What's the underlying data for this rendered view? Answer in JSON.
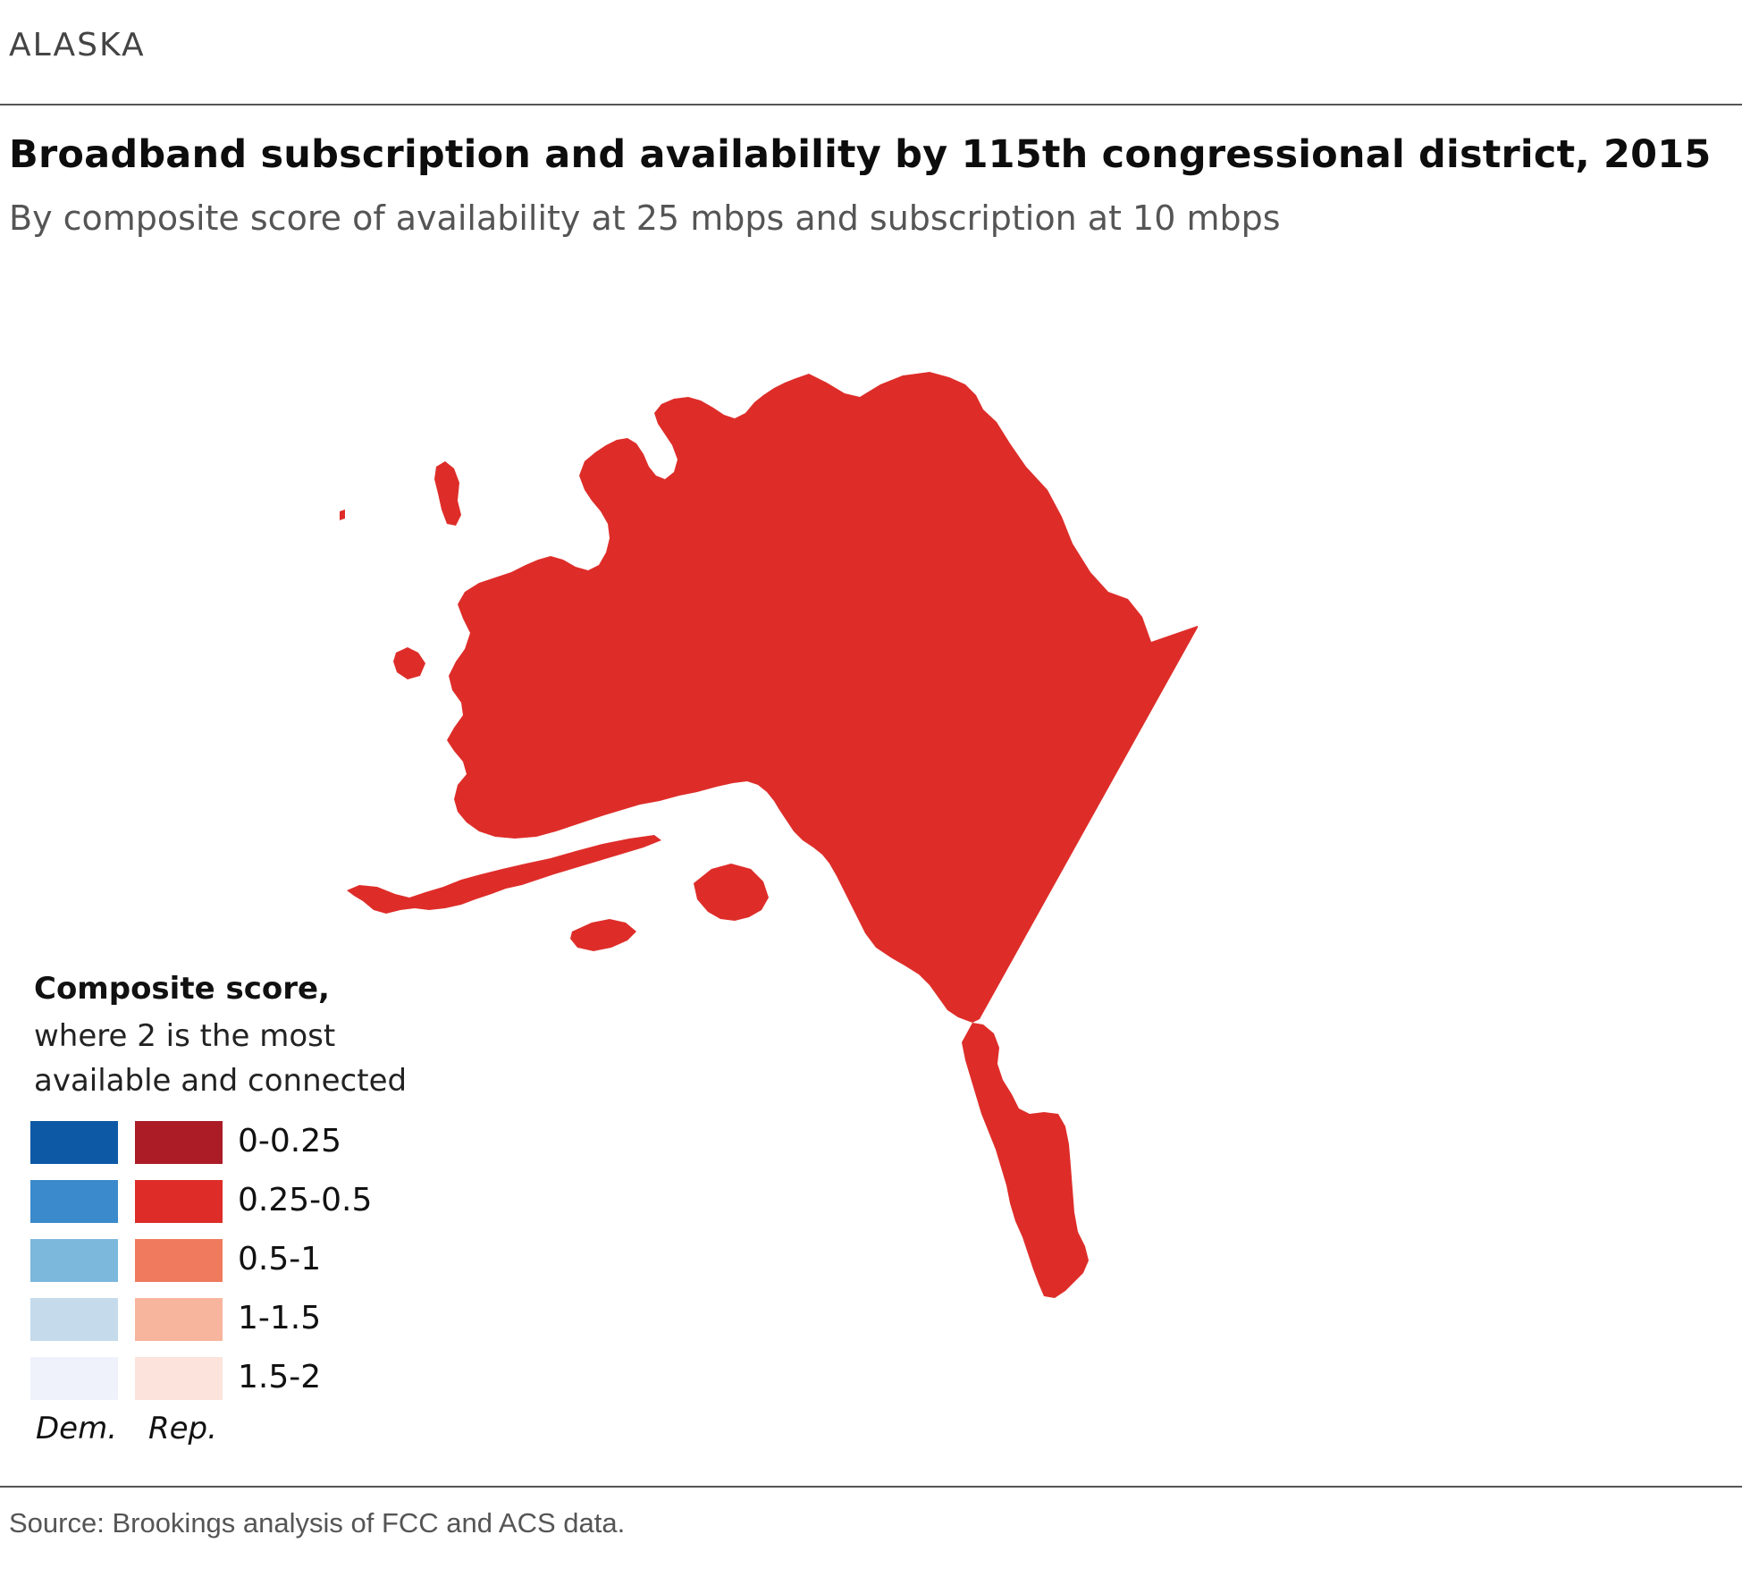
{
  "header": {
    "state": "ALASKA",
    "title": "Broadband subscription and availability by 115th congressional district, 2015",
    "subtitle": "By composite score of availability at 25 mbps and subscription at 10 mbps"
  },
  "map": {
    "region": "Alaska",
    "fill_color": "#DE2D29"
  },
  "legend": {
    "title": "Composite score,",
    "description": "where 2 is the most available and connected",
    "ranges": [
      "0-0.25",
      "0.25-0.5",
      "0.5-1",
      "1-1.5",
      "1.5-2"
    ],
    "dem_colors": [
      "#0E59A5",
      "#3B8ACB",
      "#7CB7DC",
      "#C5DBEC",
      "#EFF2FB"
    ],
    "rep_colors": [
      "#AC1C26",
      "#DE2D29",
      "#EF7A5E",
      "#F8B59E",
      "#FCE3DB"
    ],
    "dem_label": "Dem.",
    "rep_label": "Rep."
  },
  "footer": {
    "source": "Source: Brookings analysis of FCC and ACS data."
  }
}
